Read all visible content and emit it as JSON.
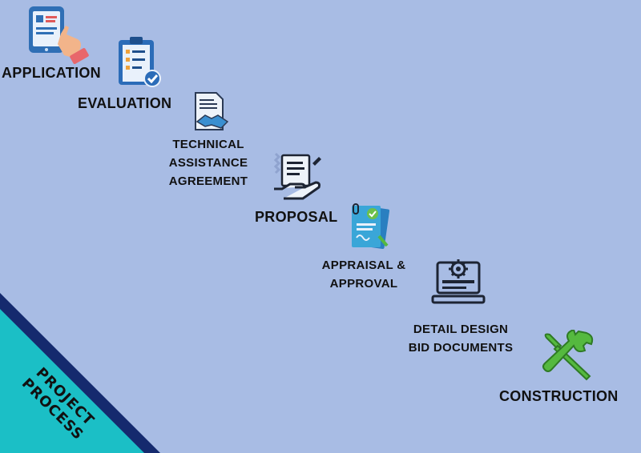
{
  "steps": {
    "application": "APPLICATION",
    "evaluation": "EVALUATION",
    "technical": [
      "TECHNICAL",
      "ASSISTANCE",
      "AGREEMENT"
    ],
    "proposal": "PROPOSAL",
    "appraisal": [
      "APPRAISAL &",
      "APPROVAL"
    ],
    "detail": [
      "DETAIL DESIGN",
      "BID DOCUMENTS"
    ],
    "construction": "CONSTRUCTION"
  },
  "corner": {
    "line1": "PROJECT",
    "line2": "PROCESS"
  },
  "colors": {
    "background": "#a8bce4",
    "corner_teal": "#1bbfc6",
    "corner_navy": "#152a6e",
    "icon_blue": "#2b6cb8",
    "icon_green": "#55b93f"
  },
  "icons": [
    "tablet-touch-icon",
    "clipboard-check-icon",
    "handshake-document-icon",
    "hand-document-icon",
    "approved-document-icon",
    "laptop-gear-icon",
    "wrench-hammer-icon"
  ]
}
